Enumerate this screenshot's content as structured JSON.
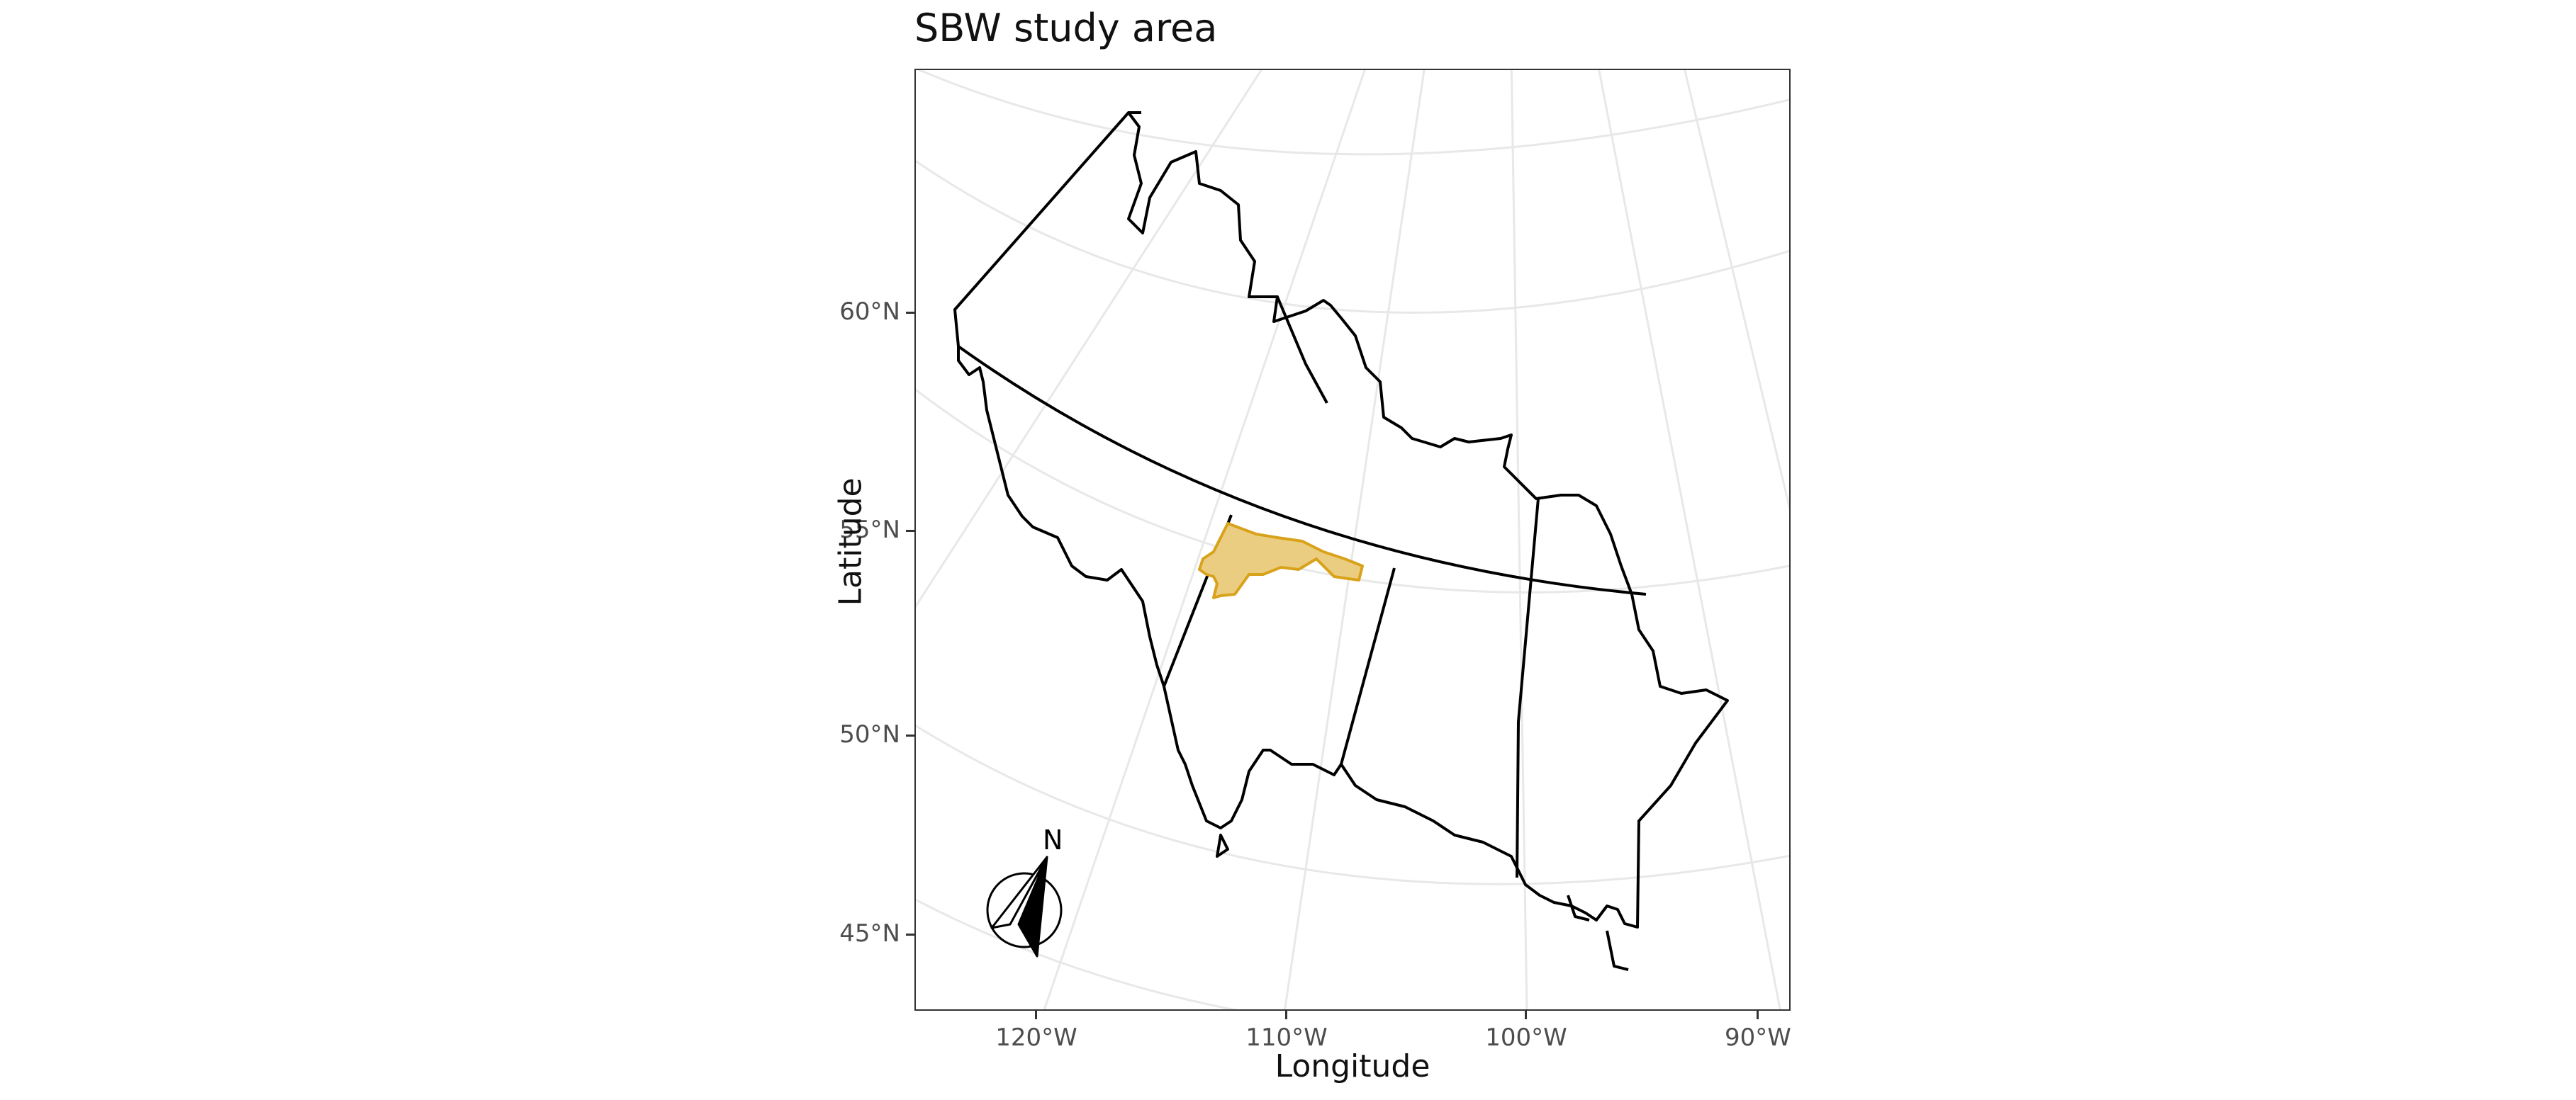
{
  "map": {
    "title": "SBW study area",
    "x_axis_label": "Longitude",
    "y_axis_label": "Latitude",
    "lat_ticks": [
      "60°N",
      "55°N",
      "50°N",
      "45°N"
    ],
    "lon_ticks": [
      "120°W",
      "110°W",
      "100°W",
      "90°W"
    ],
    "compass_label": "N",
    "study_area_color": "#D9A21B",
    "study_area_fill": "#EBCD82",
    "boundary_color": "#000000",
    "graticule_color": "#E8E8E8"
  }
}
